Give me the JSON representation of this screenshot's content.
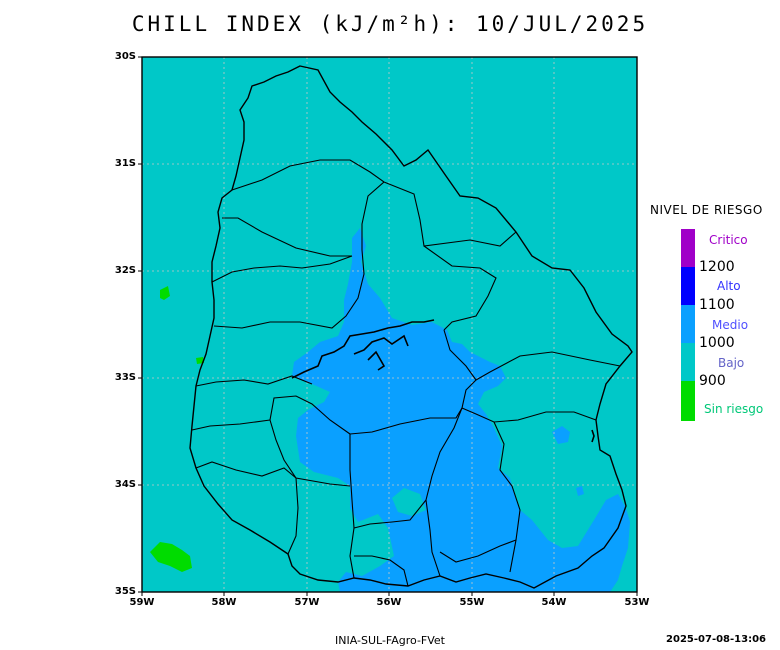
{
  "title": "CHILL INDEX (kJ/m²h): 10/JUL/2025",
  "colors": {
    "bajo": "#00c8c8",
    "medio": "#0aa0ff",
    "alto": "#0000ff",
    "critico": "#a000c8",
    "sin_riesgo": "#00dc00",
    "grid": "#c8c8c8"
  },
  "axes": {
    "y_ticks": [
      "30S",
      "31S",
      "32S",
      "33S",
      "34S",
      "35S"
    ],
    "x_ticks": [
      "59W",
      "58W",
      "57W",
      "56W",
      "55W",
      "54W",
      "53W"
    ]
  },
  "legend": {
    "title": "NIVEL DE RIESGO",
    "levels": [
      {
        "label": "Critico",
        "color": "#a000c8",
        "text_color": "#a000c8"
      },
      {
        "label": "Alto",
        "color": "#0000ff",
        "text_color": "#3232ff"
      },
      {
        "label": "Medio",
        "color": "#0aa0ff",
        "text_color": "#5050ff"
      },
      {
        "label": "Bajo",
        "color": "#00c8c8",
        "text_color": "#6464c8"
      },
      {
        "label": "Sin riesgo",
        "color": "#00dc00",
        "text_color": "#00c878"
      }
    ],
    "thresholds": [
      "1200",
      "1100",
      "1000",
      "900"
    ]
  },
  "footer": {
    "source": "INIA-SUL-FAgro-FVet",
    "timestamp": "2025-07-08-13:06"
  }
}
